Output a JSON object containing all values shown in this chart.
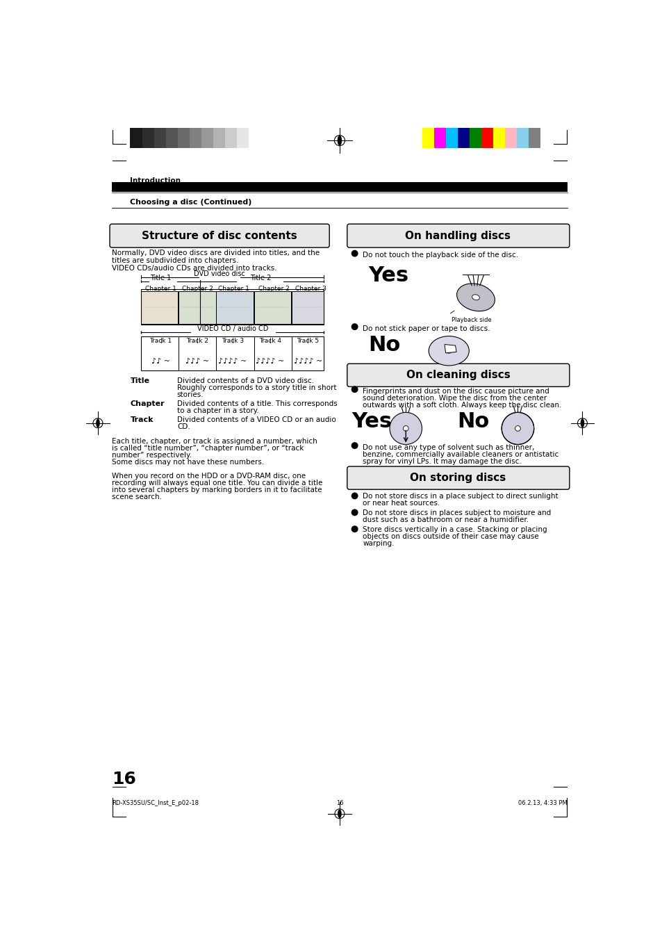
{
  "page_bg": "#ffffff",
  "page_width": 9.54,
  "page_height": 13.51,
  "dpi": 100,
  "header_bar_color": "#000000",
  "intro_text": "Introduction",
  "subheader_text": "Choosing a disc (Continued)",
  "page_number": "16",
  "footer_left": "RD-XS35SU/SC_Inst_E_p02-18",
  "footer_center": "16",
  "footer_right": "06.2.13, 4:33 PM",
  "left_section_title": "Structure of disc contents",
  "right_section_title": "On handling discs",
  "cleaning_title": "On cleaning discs",
  "storing_title": "On storing discs",
  "grayscale_colors": [
    "#1a1a1a",
    "#2d2d2d",
    "#404040",
    "#555555",
    "#6a6a6a",
    "#808080",
    "#999999",
    "#b3b3b3",
    "#cccccc",
    "#e6e6e6",
    "#ffffff"
  ],
  "color_bars": [
    "#ffff00",
    "#ff00ff",
    "#00bfff",
    "#00008b",
    "#008000",
    "#ff0000",
    "#ffff00",
    "#ffb6c1",
    "#87ceeb",
    "#808080"
  ],
  "structure_body_line1": "Normally, DVD video discs are divided into titles, and the",
  "structure_body_line2": "titles are subdivided into chapters.",
  "structure_body_line3": "VIDEO CDs/audio CDs are divided into tracks.",
  "handling_bullet1": "Do not touch the playback side of the disc.",
  "handling_yes": "Yes",
  "handling_playback_side": "Playback side",
  "handling_bullet2": "Do not stick paper or tape to discs.",
  "handling_no": "No",
  "cleaning_bullet1_line1": "Fingerprints and dust on the disc cause picture and",
  "cleaning_bullet1_line2": "sound deterioration. Wipe the disc from the center",
  "cleaning_bullet1_line3": "outwards with a soft cloth. Always keep the disc clean.",
  "cleaning_yes": "Yes",
  "cleaning_no": "No",
  "cleaning_bullet2_line1": "Do not use any type of solvent such as thinner,",
  "cleaning_bullet2_line2": "benzine, commercially available cleaners or antistatic",
  "cleaning_bullet2_line3": "spray for vinyl LPs. It may damage the disc.",
  "storing_bullet1_line1": "Do not store discs in a place subject to direct sunlight",
  "storing_bullet1_line2": "or near heat sources.",
  "storing_bullet2_line1": "Do not store discs in places subject to moisture and",
  "storing_bullet2_line2": "dust such as a bathroom or near a humidifier.",
  "storing_bullet3_line1": "Store discs vertically in a case. Stacking or placing",
  "storing_bullet3_line2": "objects on discs outside of their case may cause",
  "storing_bullet3_line3": "warping.",
  "title_label": "Title",
  "title_text_line1": "Divided contents of a DVD video disc.",
  "title_text_line2": "Roughly corresponds to a story title in short",
  "title_text_line3": "stories.",
  "chapter_label": "Chapter",
  "chapter_text_line1": "Divided contents of a title. This corresponds",
  "chapter_text_line2": "to a chapter in a story.",
  "track_label": "Track",
  "track_text_line1": "Divided contents of a VIDEO CD or an audio",
  "track_text_line2": "CD.",
  "para2_line1": "Each title, chapter, or track is assigned a number, which",
  "para2_line2": "is called “title number”, “chapter number”, or “track",
  "para2_line3": "number” respectively.",
  "para2_line4": "Some discs may not have these numbers.",
  "para3_line1": "When you record on the HDD or a DVD-RAM disc, one",
  "para3_line2": "recording will always equal one title. You can divide a title",
  "para3_line3": "into several chapters by marking borders in it to facilitate",
  "para3_line4": "scene search."
}
